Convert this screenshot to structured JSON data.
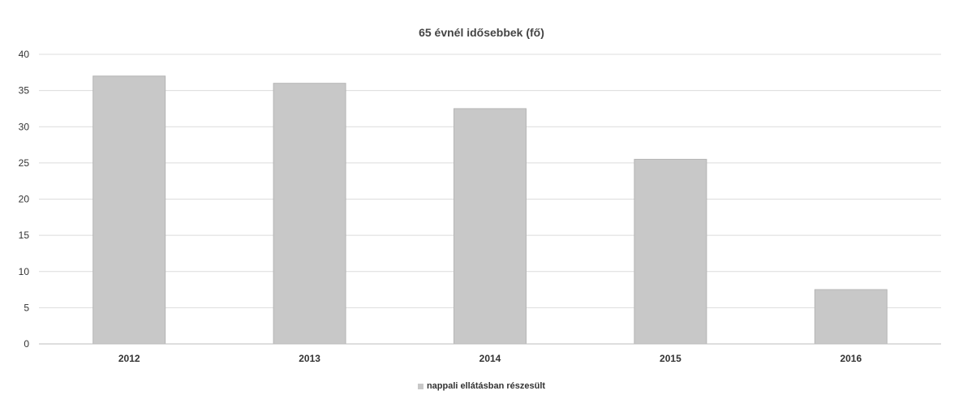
{
  "chart_data": {
    "type": "bar",
    "title": "65 évnél idősebbek (fő)",
    "categories": [
      "2012",
      "2013",
      "2014",
      "2015",
      "2016"
    ],
    "series": [
      {
        "name": "nappali ellátásban részesült",
        "values": [
          37,
          36,
          32.5,
          25.5,
          7.5
        ],
        "color": "#c8c8c8"
      }
    ],
    "ylim": [
      0,
      40
    ],
    "yticks": [
      0,
      5,
      10,
      15,
      20,
      25,
      30,
      35,
      40
    ],
    "grid": true,
    "legend": "bottom"
  }
}
